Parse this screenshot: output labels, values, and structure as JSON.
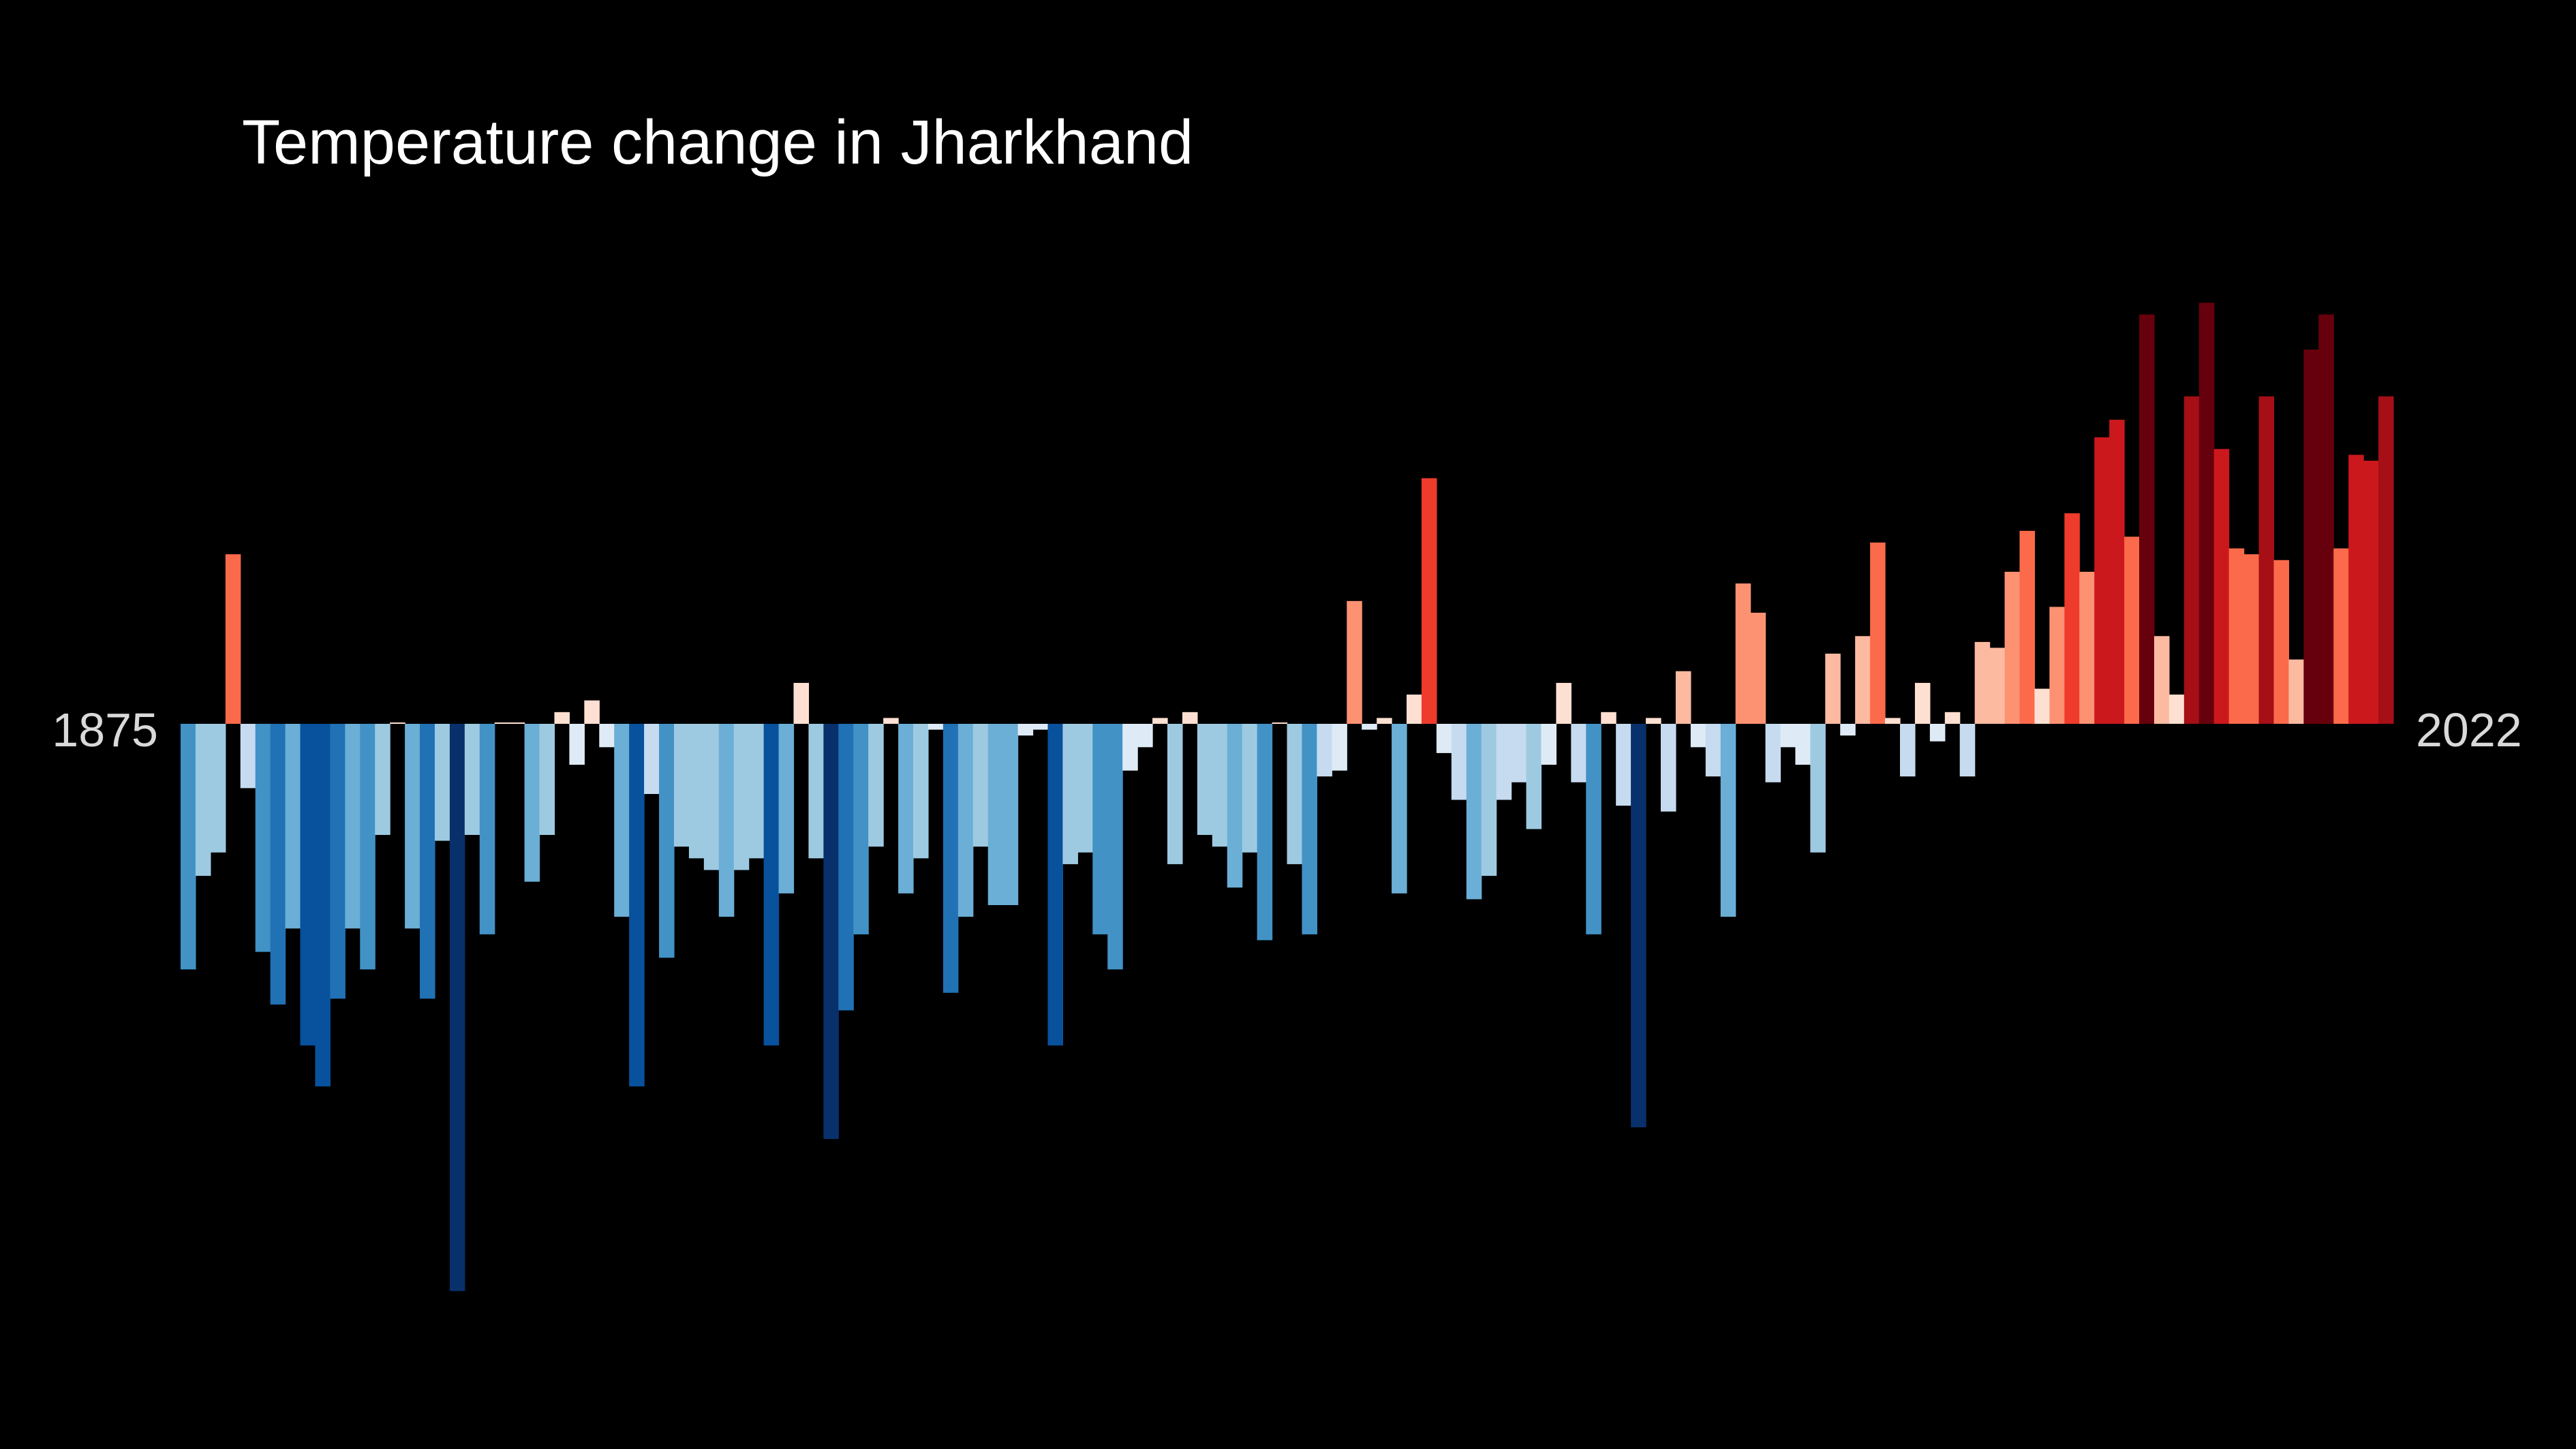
{
  "page": {
    "background": "#000000"
  },
  "chart_data": {
    "type": "bar",
    "title": "Temperature change in Jharkhand",
    "start_label": "1875",
    "end_label": "2022",
    "first_year": 1875,
    "last_year": 2022,
    "xlabel": "",
    "ylabel": "",
    "grid": false,
    "legend": "none",
    "value_units": "relative anomaly (units not printed)",
    "ylim": [
      -1.0,
      0.72
    ],
    "colors": {
      "title": "#ffffff",
      "labels": "#d9d9d9",
      "cool": "#08306b",
      "warm": "#67000d"
    },
    "values": [
      -0.42,
      -0.26,
      -0.22,
      0.29,
      -0.11,
      -0.39,
      -0.48,
      -0.35,
      -0.55,
      -0.62,
      -0.47,
      -0.35,
      -0.42,
      -0.19,
      0.0,
      -0.35,
      -0.47,
      -0.2,
      -0.97,
      -0.19,
      -0.36,
      0.0,
      0.0,
      -0.27,
      -0.19,
      0.02,
      -0.07,
      0.04,
      -0.04,
      -0.33,
      -0.62,
      -0.12,
      -0.4,
      -0.21,
      -0.23,
      -0.25,
      -0.33,
      -0.25,
      -0.23,
      -0.55,
      -0.29,
      0.07,
      -0.23,
      -0.71,
      -0.49,
      -0.36,
      -0.21,
      0.01,
      -0.29,
      -0.23,
      -0.01,
      -0.46,
      -0.33,
      -0.21,
      -0.31,
      -0.31,
      -0.02,
      -0.01,
      -0.55,
      -0.24,
      -0.22,
      -0.36,
      -0.42,
      -0.08,
      -0.04,
      0.01,
      -0.24,
      0.02,
      -0.19,
      -0.21,
      -0.28,
      -0.22,
      -0.37,
      0.0,
      -0.24,
      -0.36,
      -0.09,
      -0.08,
      0.21,
      -0.01,
      0.01,
      -0.29,
      0.05,
      0.42,
      -0.05,
      -0.13,
      -0.3,
      -0.26,
      -0.13,
      -0.1,
      -0.18,
      -0.07,
      0.07,
      -0.1,
      -0.36,
      0.02,
      -0.14,
      -0.69,
      0.01,
      -0.15,
      0.09,
      -0.04,
      -0.09,
      -0.33,
      0.24,
      0.19,
      -0.1,
      -0.04,
      -0.07,
      -0.22,
      0.12,
      -0.02,
      0.15,
      0.31,
      0.01,
      -0.09,
      0.07,
      -0.03,
      0.02,
      -0.09,
      0.14,
      0.13,
      0.26,
      0.33,
      0.06,
      0.2,
      0.36,
      0.26,
      0.49,
      0.52,
      0.32,
      0.7,
      0.15,
      0.05,
      0.56,
      0.72,
      0.47,
      0.3,
      0.29,
      0.56,
      0.28,
      0.11,
      0.64,
      0.7,
      0.3,
      0.46,
      0.45,
      0.56
    ]
  }
}
